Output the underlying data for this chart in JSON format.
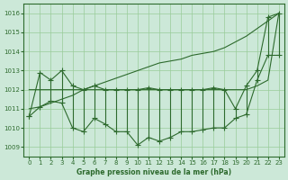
{
  "title": "Graphe pression niveau de la mer (hPa)",
  "x_values": [
    0,
    1,
    2,
    3,
    4,
    5,
    6,
    7,
    8,
    9,
    10,
    11,
    12,
    13,
    14,
    15,
    16,
    17,
    18,
    19,
    20,
    21,
    22,
    23
  ],
  "y_high": [
    1010.6,
    1012.9,
    1012.5,
    1013.0,
    1012.2,
    1012.0,
    1012.2,
    1012.0,
    1012.0,
    1012.0,
    1012.0,
    1012.1,
    1012.0,
    1012.0,
    1012.0,
    1012.0,
    1012.0,
    1012.1,
    1012.0,
    1011.0,
    1012.2,
    1013.0,
    1015.8,
    1016.0
  ],
  "y_low": [
    1010.6,
    1011.1,
    1011.4,
    1011.3,
    1010.0,
    1009.8,
    1010.5,
    1010.2,
    1009.8,
    1009.8,
    1009.1,
    1009.5,
    1009.3,
    1009.5,
    1009.8,
    1009.8,
    1009.9,
    1010.0,
    1010.0,
    1010.5,
    1010.7,
    1012.5,
    1013.8,
    1013.8
  ],
  "y_trend_flat": [
    1012.0,
    1012.0,
    1012.0,
    1012.0,
    1012.0,
    1012.0,
    1012.0,
    1012.0,
    1012.0,
    1012.0,
    1012.0,
    1012.0,
    1012.0,
    1012.0,
    1012.0,
    1012.0,
    1012.0,
    1012.0,
    1012.0,
    1012.0,
    1012.0,
    1012.2,
    1012.5,
    1016.0
  ],
  "y_trend_rise": [
    1011.0,
    1011.1,
    1011.3,
    1011.5,
    1011.7,
    1012.0,
    1012.2,
    1012.4,
    1012.6,
    1012.8,
    1013.0,
    1013.2,
    1013.4,
    1013.5,
    1013.6,
    1013.8,
    1013.9,
    1014.0,
    1014.2,
    1014.5,
    1014.8,
    1015.2,
    1015.6,
    1016.0
  ],
  "bg_color": "#cce8d8",
  "line_color": "#2d6a2d",
  "grid_color": "#99cc99",
  "ylim": [
    1008.5,
    1016.5
  ],
  "xlim": [
    -0.5,
    23.5
  ],
  "yticks": [
    1009,
    1010,
    1011,
    1012,
    1013,
    1014,
    1015,
    1016
  ],
  "xticks": [
    0,
    1,
    2,
    3,
    4,
    5,
    6,
    7,
    8,
    9,
    10,
    11,
    12,
    13,
    14,
    15,
    16,
    17,
    18,
    19,
    20,
    21,
    22,
    23
  ]
}
